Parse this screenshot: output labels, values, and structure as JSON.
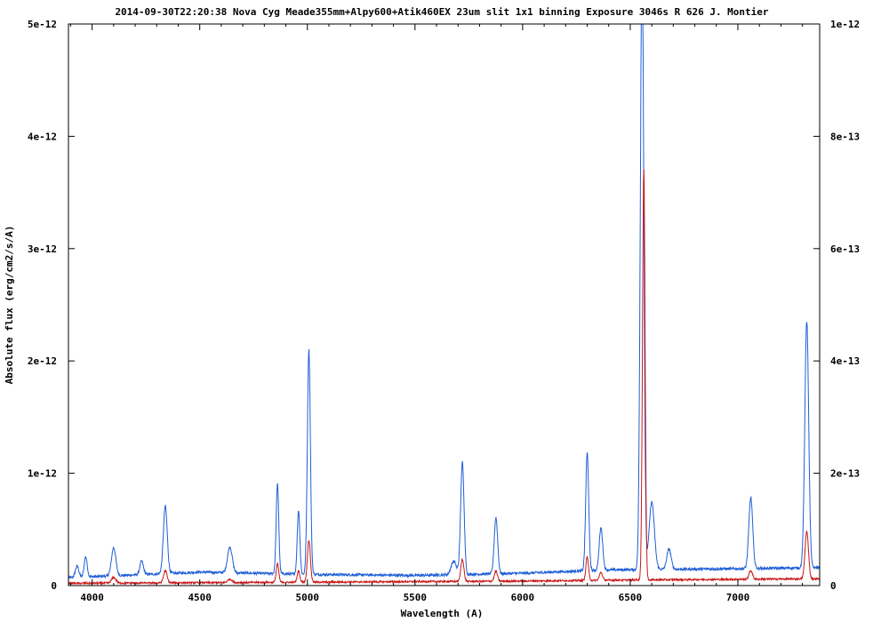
{
  "chart_data": {
    "type": "line",
    "title": "2014-09-30T22:20:38 Nova Cyg Meade355mm+Alpy600+Atik460EX 23um slit 1x1 binning Exposure 3046s R 626 J. Montier",
    "xlabel": "Wavelength (A)",
    "ylabel": "Absolute flux (erg/cm2/s/A)",
    "xlim": [
      3890,
      7380
    ],
    "ylim_left": [
      0,
      5e-12
    ],
    "ylim_right": [
      0,
      1e-12
    ],
    "x_ticks": [
      4000,
      4500,
      5000,
      5500,
      6000,
      6500,
      7000
    ],
    "x_tick_labels": [
      "4000",
      "4500",
      "5000",
      "5500",
      "6000",
      "6500",
      "7000"
    ],
    "y_left_ticks": [
      0,
      1e-12,
      2e-12,
      3e-12,
      4e-12,
      5e-12
    ],
    "y_left_tick_labels": [
      "0",
      "1e-12",
      "2e-12",
      "3e-12",
      "4e-12",
      "5e-12"
    ],
    "y_right_ticks": [
      0,
      2e-13,
      4e-13,
      6e-13,
      8e-13,
      1e-12
    ],
    "y_right_tick_labels": [
      "0",
      "2e-13",
      "4e-13",
      "6e-13",
      "8e-13",
      "1e-12"
    ],
    "grid": false,
    "legend": "none",
    "series": [
      {
        "axis": "left",
        "color": "#1f5fd6",
        "baseline": [
          [
            3890,
            7e-14
          ],
          [
            4500,
            1.2e-13
          ],
          [
            5000,
            1e-13
          ],
          [
            5500,
            9e-14
          ],
          [
            6000,
            1.1e-13
          ],
          [
            6400,
            1.4e-13
          ],
          [
            7000,
            1.5e-13
          ],
          [
            7380,
            1.6e-13
          ]
        ],
        "peaks": [
          [
            3930,
            1e-13,
            8
          ],
          [
            3970,
            1.8e-13,
            7
          ],
          [
            4100,
            2.5e-13,
            10
          ],
          [
            4230,
            1.2e-13,
            8
          ],
          [
            4340,
            6e-13,
            9
          ],
          [
            4640,
            2.3e-13,
            11
          ],
          [
            4861,
            8e-13,
            6
          ],
          [
            4959,
            5.7e-13,
            6
          ],
          [
            5007,
            2e-12,
            7
          ],
          [
            5680,
            1.2e-13,
            12
          ],
          [
            5720,
            1e-12,
            8
          ],
          [
            5876,
            5e-13,
            8
          ],
          [
            6300,
            1.05e-12,
            7
          ],
          [
            6364,
            3.8e-13,
            8
          ],
          [
            6555,
            5.5e-12,
            8
          ],
          [
            6600,
            6e-13,
            12
          ],
          [
            6680,
            1.8e-13,
            10
          ],
          [
            7060,
            6.3e-13,
            9
          ],
          [
            7320,
            2.2e-12,
            9
          ]
        ]
      },
      {
        "axis": "right",
        "color": "#c81818",
        "baseline": [
          [
            3890,
            4e-15
          ],
          [
            5000,
            6e-15
          ],
          [
            6000,
            8e-15
          ],
          [
            6500,
            1e-14
          ],
          [
            7380,
            1.2e-14
          ]
        ],
        "peaks": [
          [
            4100,
            1e-14,
            10
          ],
          [
            4340,
            2.2e-14,
            8
          ],
          [
            4640,
            6e-15,
            10
          ],
          [
            4861,
            3.3e-14,
            6
          ],
          [
            4959,
            2e-14,
            6
          ],
          [
            5007,
            7.5e-14,
            7
          ],
          [
            5720,
            4e-14,
            7
          ],
          [
            5876,
            1.8e-14,
            7
          ],
          [
            6300,
            4.2e-14,
            6
          ],
          [
            6364,
            1.4e-14,
            7
          ],
          [
            6563,
            7.3e-13,
            6
          ],
          [
            7060,
            1.5e-14,
            8
          ],
          [
            7320,
            8.5e-14,
            8
          ]
        ]
      }
    ]
  }
}
